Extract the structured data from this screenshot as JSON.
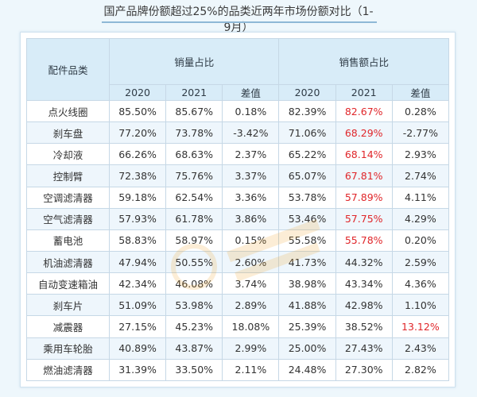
{
  "title": "国产品牌份额超过25%的品类近两年市场份额对比（1-9月）",
  "table": {
    "category_header": "配件品类",
    "groups": [
      "销量占比",
      "销售额占比"
    ],
    "sub_headers": [
      "2020",
      "2021",
      "差值",
      "2020",
      "2021",
      "差值"
    ],
    "rows": [
      [
        "点火线圈",
        "85.50%",
        "85.67%",
        "0.18%",
        "82.39%",
        "82.67%",
        "0.28%"
      ],
      [
        "刹车盘",
        "77.20%",
        "73.78%",
        "-3.42%",
        "71.06%",
        "68.29%",
        "-2.77%"
      ],
      [
        "冷却液",
        "66.26%",
        "68.63%",
        "2.37%",
        "65.22%",
        "68.14%",
        "2.93%"
      ],
      [
        "控制臂",
        "72.38%",
        "75.76%",
        "3.37%",
        "65.07%",
        "67.81%",
        "2.74%"
      ],
      [
        "空调滤清器",
        "59.18%",
        "62.54%",
        "3.36%",
        "53.78%",
        "57.89%",
        "4.11%"
      ],
      [
        "空气滤清器",
        "57.93%",
        "61.78%",
        "3.86%",
        "53.46%",
        "57.75%",
        "4.29%"
      ],
      [
        "蓄电池",
        "58.83%",
        "58.97%",
        "0.15%",
        "55.58%",
        "55.78%",
        "0.20%"
      ],
      [
        "机油滤清器",
        "47.94%",
        "50.55%",
        "2.60%",
        "41.73%",
        "44.32%",
        "2.59%"
      ],
      [
        "自动变速箱油",
        "42.34%",
        "46.08%",
        "3.74%",
        "38.98%",
        "43.34%",
        "4.36%"
      ],
      [
        "刹车片",
        "51.09%",
        "53.98%",
        "2.89%",
        "41.88%",
        "42.98%",
        "1.10%"
      ],
      [
        "减震器",
        "27.15%",
        "45.23%",
        "18.08%",
        "25.39%",
        "38.52%",
        "13.12%"
      ],
      [
        "乘用车轮胎",
        "40.89%",
        "43.87%",
        "2.99%",
        "25.00%",
        "27.43%",
        "2.43%"
      ],
      [
        "燃油滤清器",
        "31.39%",
        "33.50%",
        "2.11%",
        "24.48%",
        "27.30%",
        "2.82%"
      ]
    ],
    "highlight_color": "#e0262a",
    "highlighted_cells": [
      [
        0,
        5
      ],
      [
        1,
        5
      ],
      [
        2,
        5
      ],
      [
        3,
        5
      ],
      [
        4,
        5
      ],
      [
        5,
        5
      ],
      [
        6,
        5
      ],
      [
        10,
        6
      ]
    ]
  },
  "colors": {
    "header_bg": "#d8ecf8",
    "row_alt_bg": "#eef6fc",
    "page_bg": "#eef7fc",
    "watermark": "#f0a020"
  }
}
